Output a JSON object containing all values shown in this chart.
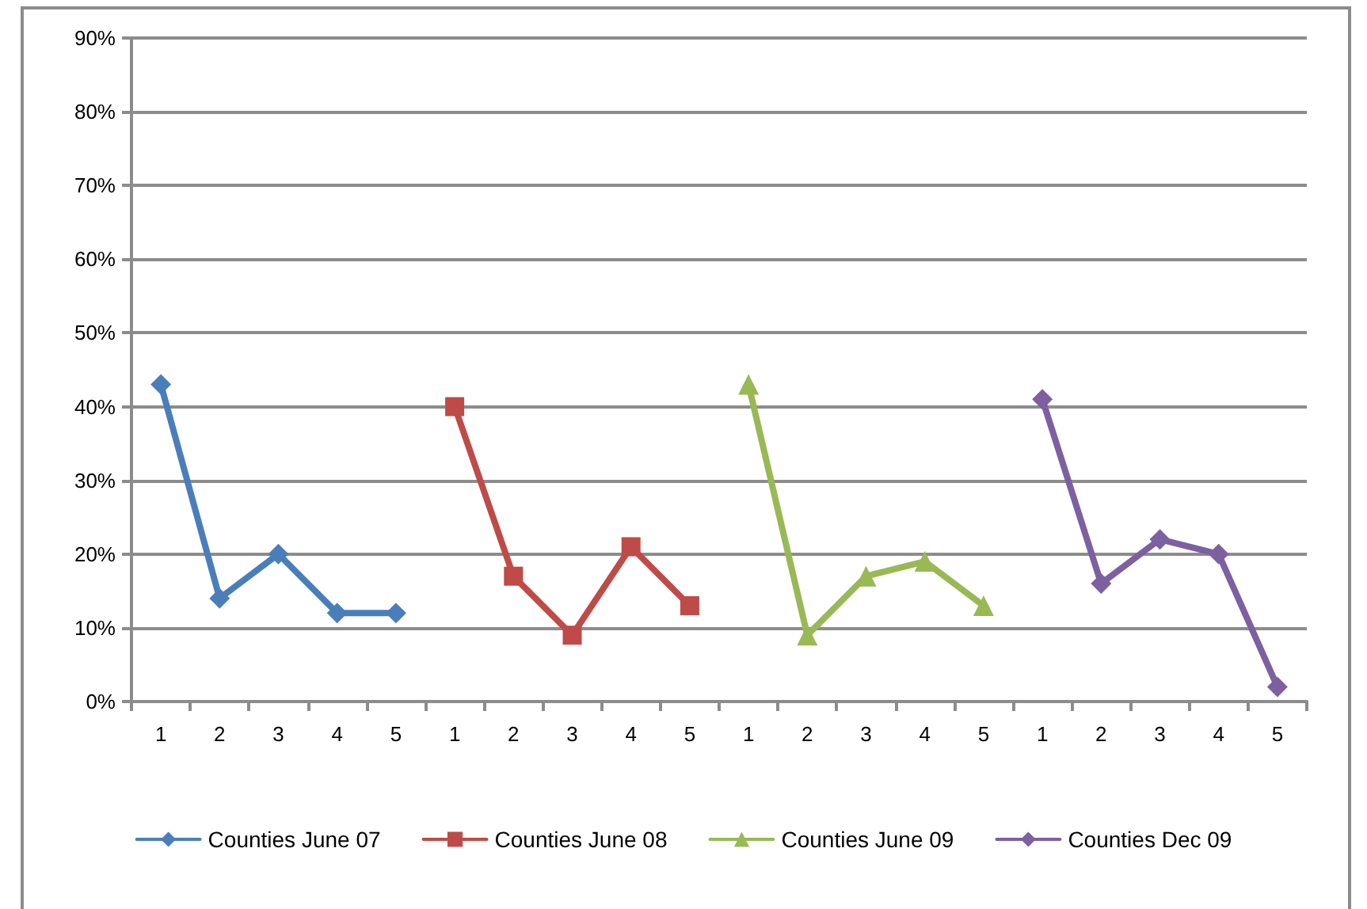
{
  "chart_data": {
    "type": "line",
    "categories": [
      "1",
      "2",
      "3",
      "4",
      "5",
      "1",
      "2",
      "3",
      "4",
      "5",
      "1",
      "2",
      "3",
      "4",
      "5",
      "1",
      "2",
      "3",
      "4",
      "5"
    ],
    "series": [
      {
        "name": "Counties June 07",
        "color": "#4a7ebb",
        "marker": "diamond",
        "values": [
          43,
          14,
          20,
          12,
          12,
          null,
          null,
          null,
          null,
          null,
          null,
          null,
          null,
          null,
          null,
          null,
          null,
          null,
          null,
          null
        ]
      },
      {
        "name": "Counties June 08",
        "color": "#be4b48",
        "marker": "square",
        "values": [
          null,
          null,
          null,
          null,
          null,
          40,
          17,
          9,
          21,
          13,
          null,
          null,
          null,
          null,
          null,
          null,
          null,
          null,
          null,
          null
        ]
      },
      {
        "name": "Counties June 09",
        "color": "#98b954",
        "marker": "triangle",
        "values": [
          null,
          null,
          null,
          null,
          null,
          null,
          null,
          null,
          null,
          null,
          43,
          9,
          17,
          19,
          13,
          null,
          null,
          null,
          null,
          null
        ]
      },
      {
        "name": "Counties Dec 09",
        "color": "#7d60a0",
        "marker": "diamond",
        "values": [
          null,
          null,
          null,
          null,
          null,
          null,
          null,
          null,
          null,
          null,
          null,
          null,
          null,
          null,
          null,
          41,
          16,
          22,
          20,
          2
        ]
      }
    ],
    "ylim": [
      0,
      90
    ],
    "yticks": [
      {
        "value": 0,
        "label": "0%"
      },
      {
        "value": 10,
        "label": "10%"
      },
      {
        "value": 20,
        "label": "20%"
      },
      {
        "value": 30,
        "label": "30%"
      },
      {
        "value": 40,
        "label": "40%"
      },
      {
        "value": 50,
        "label": "50%"
      },
      {
        "value": 60,
        "label": "60%"
      },
      {
        "value": 70,
        "label": "70%"
      },
      {
        "value": 80,
        "label": "80%"
      },
      {
        "value": 90,
        "label": "90%"
      }
    ],
    "grid": "y",
    "legend": "bottom",
    "line_style": "solid"
  }
}
